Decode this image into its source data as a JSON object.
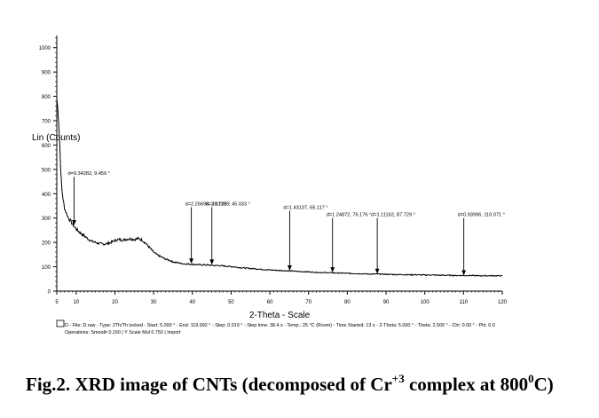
{
  "chart_data": {
    "type": "line",
    "ylabel": "Lin (Counts)",
    "xlabel": "2-Theta - Scale",
    "xlim": [
      5,
      120
    ],
    "ylim": [
      0,
      1050
    ],
    "x_ticks": [
      5,
      10,
      20,
      30,
      40,
      50,
      60,
      70,
      80,
      90,
      100,
      110,
      120
    ],
    "y_ticks": [
      0,
      100,
      200,
      300,
      400,
      500,
      600,
      700,
      800,
      900,
      1000
    ],
    "grid": false,
    "series_color": "#000000",
    "x": [
      5,
      5.2,
      5.5,
      5.8,
      6.0,
      6.3,
      6.6,
      7.0,
      7.5,
      8.0,
      8.5,
      9.0,
      9.5,
      10.0,
      11.0,
      12.0,
      13.0,
      14.0,
      15.0,
      16.0,
      17.0,
      18.0,
      19.0,
      20.0,
      21.0,
      22.0,
      23.0,
      24.0,
      25.0,
      26.0,
      27.0,
      28.0,
      29.0,
      30.0,
      31.0,
      32.0,
      33.0,
      34.0,
      35.0,
      36.0,
      37.0,
      38.0,
      39.0,
      40.0,
      41.0,
      42.0,
      43.0,
      44.0,
      45.0,
      46.0,
      47.0,
      48.0,
      50.0,
      52.0,
      54.0,
      56.0,
      58.0,
      60.0,
      62.0,
      64.0,
      66.0,
      68.0,
      70.0,
      72.0,
      74.0,
      76.0,
      78.0,
      80.0,
      82.0,
      84.0,
      86.0,
      88.0,
      90.0,
      92.0,
      94.0,
      96.0,
      98.0,
      100.0,
      102.0,
      104.0,
      106.0,
      108.0,
      110.0,
      112.0,
      114.0,
      116.0,
      118.0,
      119.992
    ],
    "values": [
      790,
      760,
      690,
      590,
      500,
      420,
      380,
      340,
      320,
      300,
      290,
      275,
      265,
      255,
      240,
      228,
      215,
      205,
      200,
      195,
      193,
      195,
      200,
      208,
      212,
      210,
      213,
      215,
      212,
      216,
      210,
      195,
      178,
      160,
      148,
      140,
      132,
      127,
      120,
      117,
      114,
      112,
      111,
      110,
      109,
      108,
      108,
      107,
      106,
      105,
      105,
      103,
      101,
      97,
      94,
      92,
      89,
      87,
      85,
      84,
      82,
      80,
      79,
      77,
      76,
      75,
      74,
      73,
      72,
      71,
      70,
      70,
      69,
      68,
      68,
      67,
      67,
      66,
      66,
      65,
      65,
      64,
      64,
      64,
      63,
      63,
      63,
      63
    ],
    "annotations": [
      {
        "label": "d=9.34282, 9.459 °",
        "x": 9.459,
        "top": 470,
        "y": 270
      },
      {
        "label": "d=2.26695, 39.731 °",
        "x": 39.731,
        "top": 345,
        "y": 112
      },
      {
        "label": "d=2.01195, 45.033 °",
        "x": 45.033,
        "top": 345,
        "y": 108
      },
      {
        "label": "d=1.43137, 65.117 °",
        "x": 65.117,
        "top": 330,
        "y": 84
      },
      {
        "label": "d=1.24872, 76.176 °",
        "x": 76.176,
        "top": 300,
        "y": 76
      },
      {
        "label": "d=1.11162, 87.729 °",
        "x": 87.729,
        "top": 300,
        "y": 70
      },
      {
        "label": "d=0.93996, 110.071 °",
        "x": 110.071,
        "top": 300,
        "y": 64
      }
    ]
  },
  "legend_line_1": "D - File: D.raw - Type: 2Th/Th locked - Start: 5.000 ° - End: 119.992 ° - Step: 0.019 ° - Step time: 38.4 s - Temp.: 25 °C (Room) - Time Started: 13 s - 2-Theta: 5.000 ° - Theta: 2.500 ° - Chi: 0.00 ° - Phi: 0.0",
  "legend_line_2": "Operations: Smooth 0.150 | Y Scale Mul 0.750 | Import",
  "caption": {
    "prefix": "Fig.2. XRD image of CNTs (decomposed of Cr",
    "sup1": "+3",
    "middle": " complex at 800",
    "sup2": "0",
    "suffix": "C)"
  }
}
